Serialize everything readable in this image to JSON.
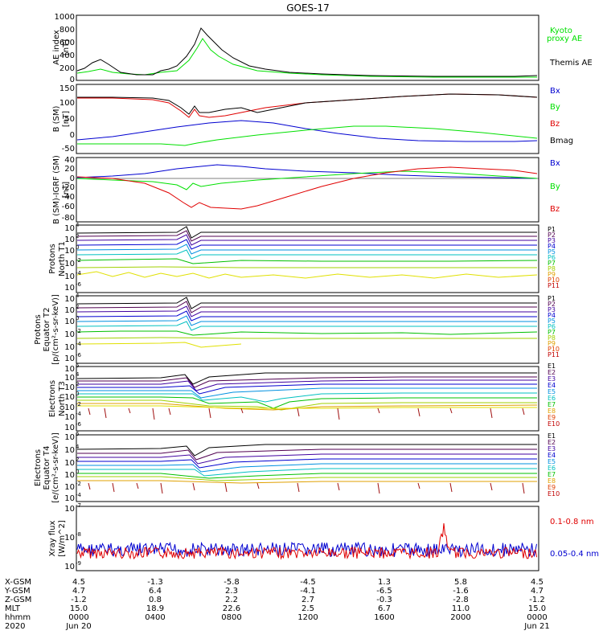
{
  "title": "GOES-17",
  "colors": {
    "black": "#000000",
    "blue": "#0000d0",
    "green": "#00e000",
    "red": "#e00000"
  },
  "chart_data": [
    {
      "type": "line",
      "panel": "AE index",
      "ylabel": [
        "AE index",
        "[nT]"
      ],
      "ylim": [
        0,
        1000
      ],
      "yticks": [
        "0",
        "200",
        "400",
        "600",
        "800",
        "1000"
      ],
      "x_hours": [
        0,
        2,
        4,
        6,
        8,
        10,
        12,
        14,
        16,
        18,
        20,
        22,
        24
      ],
      "series": [
        {
          "name": "Kyoto proxy AE",
          "color": "#00e000",
          "values": [
            60,
            100,
            60,
            150,
            600,
            300,
            100,
            60,
            40,
            30,
            30,
            40,
            40
          ]
        },
        {
          "name": "Themis AE",
          "color": "#000000",
          "values": [
            90,
            250,
            100,
            200,
            830,
            380,
            150,
            70,
            50,
            40,
            40,
            60,
            60
          ]
        }
      ]
    },
    {
      "type": "line",
      "panel": "B (SM)",
      "ylabel": [
        "B (SM)",
        "[nT]"
      ],
      "ylim": [
        -60,
        150
      ],
      "yticks": [
        "-50",
        "0",
        "50",
        "100",
        "150"
      ],
      "x_hours": [
        0,
        2,
        4,
        6,
        8,
        10,
        12,
        14,
        16,
        18,
        20,
        22,
        24
      ],
      "series": [
        {
          "name": "Bx",
          "color": "#0000d0",
          "values": [
            -28,
            -20,
            -5,
            10,
            28,
            30,
            20,
            5,
            -10,
            -20,
            -25,
            -28,
            -28
          ]
        },
        {
          "name": "By",
          "color": "#00e000",
          "values": [
            -45,
            -45,
            -45,
            -40,
            -30,
            -15,
            0,
            20,
            25,
            20,
            10,
            -5,
            -15
          ]
        },
        {
          "name": "Bz",
          "color": "#e00000",
          "values": [
            110,
            110,
            105,
            75,
            60,
            60,
            80,
            100,
            115,
            120,
            120,
            115,
            110
          ]
        },
        {
          "name": "Bmag",
          "color": "#000000",
          "values": [
            112,
            112,
            108,
            85,
            70,
            68,
            85,
            105,
            118,
            122,
            122,
            117,
            112
          ]
        }
      ]
    },
    {
      "type": "line",
      "panel": "B (SM)-IGRF (SM)",
      "ylabel": [
        "B (SM)-IGRF (SM)",
        "[nT]"
      ],
      "ylim": [
        -80,
        40
      ],
      "yticks": [
        "-80",
        "-60",
        "-40",
        "-20",
        "0",
        "20",
        "40"
      ],
      "x_hours": [
        0,
        2,
        4,
        6,
        8,
        10,
        12,
        14,
        16,
        18,
        20,
        22,
        24
      ],
      "series": [
        {
          "name": "Bx",
          "color": "#0000d0",
          "values": [
            0,
            2,
            8,
            15,
            22,
            20,
            15,
            12,
            8,
            5,
            2,
            0,
            0
          ]
        },
        {
          "name": "By",
          "color": "#00e000",
          "values": [
            -2,
            -5,
            -10,
            -18,
            -15,
            -10,
            -5,
            0,
            5,
            8,
            5,
            0,
            -3
          ]
        },
        {
          "name": "Bz",
          "color": "#e00000",
          "values": [
            2,
            0,
            -20,
            -55,
            -60,
            -40,
            -20,
            0,
            15,
            20,
            15,
            10,
            3
          ]
        }
      ]
    },
    {
      "type": "line",
      "panel": "Protons North T1",
      "ylabel": [
        "Protons",
        "North T1"
      ],
      "ylim": [
        "1e-6",
        "1e4"
      ],
      "yticks": [
        "10^4",
        "10^2",
        "10^0",
        "10^-2",
        "10^-4",
        "10^-6"
      ],
      "legend": [
        "P1",
        "P2",
        "P3",
        "P4",
        "P5",
        "P6",
        "P7",
        "P8",
        "P9",
        "P10",
        "P11"
      ]
    },
    {
      "type": "line",
      "panel": "Protons Equator T2",
      "ylabel": [
        "Protons",
        "Equator T2",
        "[p/(cm²-s-sr-keV)]"
      ],
      "ylim": [
        "1e-6",
        "1e4"
      ],
      "yticks": [
        "10^4",
        "10^2",
        "10^0",
        "10^-2",
        "10^-4",
        "10^-6"
      ],
      "legend": [
        "P1",
        "P2",
        "P3",
        "P4",
        "P5",
        "P6",
        "P7",
        "P8",
        "P9",
        "P10",
        "P11"
      ]
    },
    {
      "type": "line",
      "panel": "Electrons North T3",
      "ylabel": [
        "Electrons",
        "North T3"
      ],
      "ylim": [
        "1e-6",
        "1e6"
      ],
      "yticks": [
        "10^6",
        "10^4",
        "10^2",
        "10^0",
        "10^-2",
        "10^-4",
        "10^-6"
      ],
      "legend": [
        "E1",
        "E2",
        "E3",
        "E4",
        "E5",
        "E6",
        "E7",
        "E8",
        "E9",
        "E10"
      ]
    },
    {
      "type": "line",
      "panel": "Electrons Equator T4",
      "ylabel": [
        "Electrons",
        "Equator T4",
        "[e/(cm²-s-sr-keV)]"
      ],
      "ylim": [
        "1e-4",
        "1e6"
      ],
      "yticks": [
        "10^6",
        "10^4",
        "10^2",
        "10^0",
        "10^-2",
        "10^-4"
      ],
      "legend": [
        "E1",
        "E2",
        "E3",
        "E4",
        "E5",
        "E6",
        "E7",
        "E8",
        "E9",
        "E10"
      ]
    },
    {
      "type": "line",
      "panel": "Xray flux",
      "ylabel": [
        "Xray flux",
        "[W/m^2]"
      ],
      "ylim": [
        "1e-9",
        "1e-7"
      ],
      "yticks": [
        "10^-7",
        "10^-8",
        "10^-9"
      ],
      "series": [
        {
          "name": "0.1-0.8 nm",
          "color": "#e00000",
          "approx": "~6e-9 with a spike to ~2e-8 near 19:00"
        },
        {
          "name": "0.05-0.4 nm",
          "color": "#0000d0",
          "approx": "~3e-9"
        }
      ]
    }
  ],
  "footer": {
    "rows": [
      {
        "label": "X-GSM",
        "values": [
          "4.5",
          "-1.3",
          "-5.8",
          "-4.5",
          "1.3",
          "5.8",
          "4.5"
        ]
      },
      {
        "label": "Y-GSM",
        "values": [
          "4.7",
          "6.4",
          "2.3",
          "-4.1",
          "-6.5",
          "-1.6",
          "4.7"
        ]
      },
      {
        "label": "Z-GSM",
        "values": [
          "-1.2",
          "0.8",
          "2.2",
          "2.7",
          "-0.3",
          "-2.8",
          "-1.2"
        ]
      },
      {
        "label": "MLT",
        "values": [
          "15.0",
          "18.9",
          "22.6",
          "2.5",
          "6.7",
          "11.0",
          "15.0"
        ]
      },
      {
        "label": "hhmm",
        "values": [
          "0000",
          "0400",
          "0800",
          "1200",
          "1600",
          "2000",
          "0000"
        ]
      },
      {
        "label": "2020",
        "values": [
          "Jun 20",
          "",
          "",
          "",
          "",
          "",
          "Jun 21"
        ]
      }
    ]
  }
}
